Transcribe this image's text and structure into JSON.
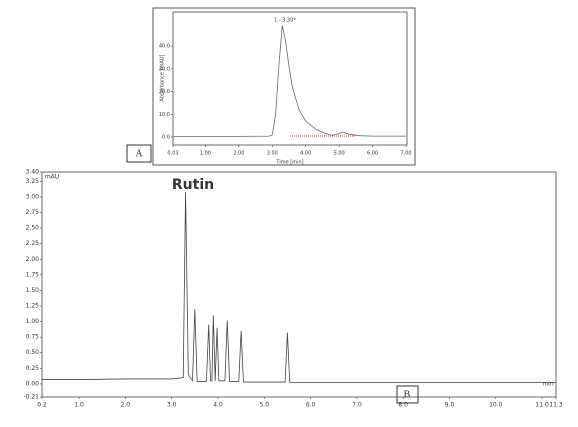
{
  "chart_data": [
    {
      "type": "line",
      "panel_label": "A",
      "annotation": "1 - 3.30*",
      "x_label": "Time [min]",
      "y_label": "Absorbance [mAU]",
      "x": [
        0.03,
        1.0,
        2.0,
        2.9,
        3.0,
        3.1,
        3.2,
        3.3,
        3.4,
        3.5,
        3.6,
        3.8,
        4.0,
        4.3,
        4.6,
        4.8,
        5.0,
        5.1,
        5.3,
        5.6,
        6.0,
        7.0
      ],
      "values": [
        0.3,
        0.3,
        0.3,
        0.4,
        0.8,
        10,
        32,
        49,
        42,
        31,
        22,
        12,
        7,
        3.5,
        1.5,
        0.8,
        1.5,
        2.2,
        1.2,
        0.6,
        0.4,
        0.4
      ],
      "color": "#666666",
      "xlim": [
        0.03,
        7.03
      ],
      "xticks": [
        0.03,
        {
          "value": 1,
          "label": "1.00"
        },
        {
          "value": 2,
          "label": "2.00"
        },
        {
          "value": 3,
          "label": "3.00"
        },
        {
          "value": 4,
          "label": "4.00"
        },
        {
          "value": 5,
          "label": "5.00"
        },
        {
          "value": 6,
          "label": "6.00"
        },
        {
          "value": 7,
          "label": "7.00"
        }
      ],
      "ylim": [
        -3.5,
        55
      ],
      "yticks": [
        {
          "value": 0,
          "label": "0.0"
        },
        {
          "value": 10,
          "label": "10.0"
        },
        {
          "value": 20,
          "label": "20.0"
        },
        {
          "value": 30,
          "label": "30.0"
        },
        {
          "value": 40,
          "label": "40.0"
        }
      ]
    },
    {
      "type": "line",
      "panel_label": "B",
      "annotation": "Rutin",
      "x_label": "min",
      "y_label": "mAU",
      "x": [
        0.2,
        1,
        2,
        3,
        3.25,
        3.3,
        3.36,
        3.45,
        3.5,
        3.55,
        3.75,
        3.8,
        3.84,
        3.87,
        3.9,
        3.94,
        3.98,
        4.02,
        4.07,
        4.15,
        4.2,
        4.25,
        4.45,
        4.5,
        4.55,
        5.45,
        5.5,
        5.55,
        7,
        9,
        11,
        11.3
      ],
      "values": [
        0.07,
        0.07,
        0.08,
        0.08,
        0.1,
        3.08,
        0.15,
        0.05,
        1.2,
        0.04,
        0.04,
        0.95,
        0.05,
        0.05,
        1.1,
        0.05,
        0.9,
        0.05,
        0.05,
        0.05,
        1.02,
        0.04,
        0.04,
        0.85,
        0.03,
        0.03,
        0.82,
        0.02,
        0.02,
        0.02,
        0.02,
        0.02
      ],
      "color": "#444444",
      "xlim": [
        0.2,
        11.3
      ],
      "xticks": [
        0.2,
        {
          "value": 1,
          "label": "1.0"
        },
        {
          "value": 2,
          "label": "2.0"
        },
        {
          "value": 3,
          "label": "3.0"
        },
        {
          "value": 4,
          "label": "4.0"
        },
        {
          "value": 5,
          "label": "5.0"
        },
        {
          "value": 6,
          "label": "6.0"
        },
        {
          "value": 7,
          "label": "7.0"
        },
        {
          "value": 8,
          "label": "8.0"
        },
        {
          "value": 9,
          "label": "9.0"
        },
        {
          "value": 10,
          "label": "10.0"
        },
        {
          "value": 11,
          "label": "11.0"
        },
        11.3
      ],
      "ylim": [
        -0.21,
        3.4
      ],
      "yticks": [
        -0.21,
        {
          "value": 0,
          "label": "0.00"
        },
        0.25,
        {
          "value": 0.5,
          "label": "0.50"
        },
        0.75,
        {
          "value": 1,
          "label": "1.00"
        },
        1.25,
        {
          "value": 1.5,
          "label": "1.50"
        },
        1.75,
        {
          "value": 2,
          "label": "2.00"
        },
        2.25,
        {
          "value": 2.5,
          "label": "2.50"
        },
        2.75,
        {
          "value": 3,
          "label": "3.00"
        },
        3.25,
        {
          "value": 3.4,
          "label": "3.40"
        }
      ]
    }
  ]
}
